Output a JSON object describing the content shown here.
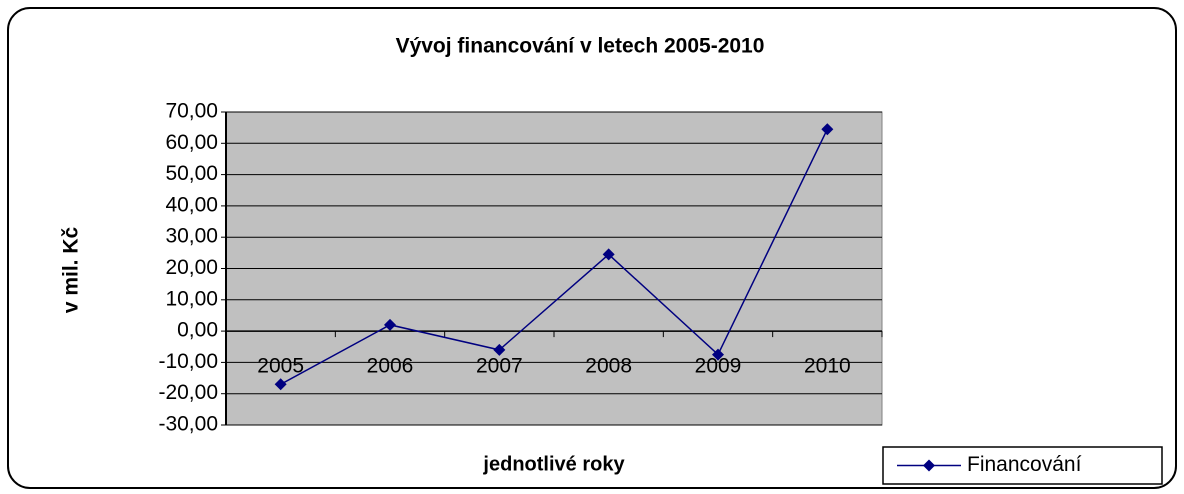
{
  "chart_data": {
    "type": "line",
    "title": "Vývoj financování v letech 2005-2010",
    "x_label": "jednotlivé roky",
    "y_label": "v mil. Kč",
    "categories": [
      "2005",
      "2006",
      "2007",
      "2008",
      "2009",
      "2010"
    ],
    "series": [
      {
        "name": "Financování",
        "color": "#000080",
        "values": [
          -17,
          2,
          -6,
          24.5,
          -7.5,
          64.5
        ]
      }
    ],
    "ylim": [
      -30,
      70
    ],
    "yticks": [
      {
        "value": -30,
        "label": "-30,00"
      },
      {
        "value": -20,
        "label": "-20,00"
      },
      {
        "value": -10,
        "label": "-10,00"
      },
      {
        "value": 0,
        "label": "0,00"
      },
      {
        "value": 10,
        "label": "10,00"
      },
      {
        "value": 20,
        "label": "20,00"
      },
      {
        "value": 30,
        "label": "30,00"
      },
      {
        "value": 40,
        "label": "40,00"
      },
      {
        "value": 50,
        "label": "50,00"
      },
      {
        "value": 60,
        "label": "60,00"
      },
      {
        "value": 70,
        "label": "70,00"
      }
    ],
    "grid": true,
    "legend": "bottom-right"
  }
}
